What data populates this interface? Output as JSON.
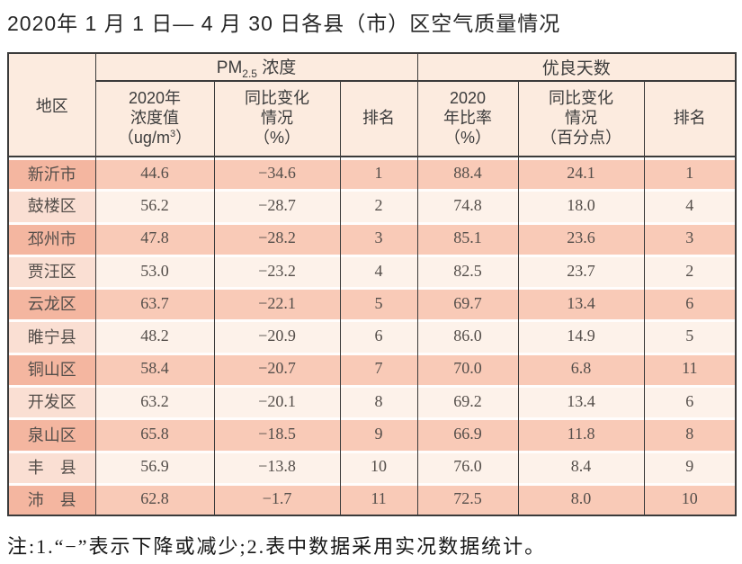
{
  "title": "2020年 1 月 1 日— 4 月 30 日各县（市）区空气质量情况",
  "note": "注:1.“−”表示下降或减少;2.表中数据采用实况数据统计。",
  "colors": {
    "row_odd_region": "#f4b6a0",
    "row_odd": "#f9cab7",
    "row_even_region": "#fadfd3",
    "row_even": "#fdf2ea",
    "header_bg": "#fcebdf",
    "border": "#3b3b3b"
  },
  "chart_data": {
    "type": "table",
    "title": "2020年1月1日—4月30日各县（市）区空气质量情况",
    "columns": [
      "地区",
      "PM2.5浓度 2020年浓度值（ug/m3）",
      "PM2.5浓度 同比变化情况（%）",
      "PM2.5浓度 排名",
      "优良天数 2020年比率（%）",
      "优良天数 同比变化情况（百分点）",
      "优良天数 排名"
    ],
    "rows": [
      [
        "新沂市",
        44.6,
        -34.6,
        1,
        88.4,
        24.1,
        1
      ],
      [
        "鼓楼区",
        56.2,
        -28.7,
        2,
        74.8,
        18.0,
        4
      ],
      [
        "邳州市",
        47.8,
        -28.2,
        3,
        85.1,
        23.6,
        3
      ],
      [
        "贾汪区",
        53.0,
        -23.2,
        4,
        82.5,
        23.7,
        2
      ],
      [
        "云龙区",
        63.7,
        -22.1,
        5,
        69.7,
        13.4,
        6
      ],
      [
        "睢宁县",
        48.2,
        -20.9,
        6,
        86.0,
        14.9,
        5
      ],
      [
        "铜山区",
        58.4,
        -20.7,
        7,
        70.0,
        6.8,
        11
      ],
      [
        "开发区",
        63.2,
        -20.1,
        8,
        69.2,
        13.4,
        6
      ],
      [
        "泉山区",
        65.8,
        -18.5,
        9,
        66.9,
        11.8,
        8
      ],
      [
        "丰县",
        56.9,
        -13.8,
        10,
        76.0,
        8.4,
        9
      ],
      [
        "沛县",
        62.8,
        -1.7,
        11,
        72.5,
        8.0,
        10
      ]
    ]
  },
  "table": {
    "region_header": "地区",
    "group1": {
      "prefix": "PM",
      "sub": "2.5",
      "suffix": " 浓度"
    },
    "group2": "优良天数",
    "sub1": {
      "line1": "2020年\n浓度值",
      "paren_open": "（",
      "unit": "ug/m",
      "sup": "3",
      "paren_close": "）"
    },
    "sub2": "同比变化\n情况\n（%）",
    "sub3": "排名",
    "sub4": "2020\n年比率\n（%）",
    "sub5": "同比变化\n情况\n（百分点）",
    "sub6": "排名",
    "rows": [
      {
        "region": "新沂市",
        "pm_value": "44.6",
        "pm_change": "−34.6",
        "pm_rank": "1",
        "good_ratio": "88.4",
        "good_change": "24.1",
        "good_rank": "1"
      },
      {
        "region": "鼓楼区",
        "pm_value": "56.2",
        "pm_change": "−28.7",
        "pm_rank": "2",
        "good_ratio": "74.8",
        "good_change": "18.0",
        "good_rank": "4"
      },
      {
        "region": "邳州市",
        "pm_value": "47.8",
        "pm_change": "−28.2",
        "pm_rank": "3",
        "good_ratio": "85.1",
        "good_change": "23.6",
        "good_rank": "3"
      },
      {
        "region": "贾汪区",
        "pm_value": "53.0",
        "pm_change": "−23.2",
        "pm_rank": "4",
        "good_ratio": "82.5",
        "good_change": "23.7",
        "good_rank": "2"
      },
      {
        "region": "云龙区",
        "pm_value": "63.7",
        "pm_change": "−22.1",
        "pm_rank": "5",
        "good_ratio": "69.7",
        "good_change": "13.4",
        "good_rank": "6"
      },
      {
        "region": "睢宁县",
        "pm_value": "48.2",
        "pm_change": "−20.9",
        "pm_rank": "6",
        "good_ratio": "86.0",
        "good_change": "14.9",
        "good_rank": "5"
      },
      {
        "region": "铜山区",
        "pm_value": "58.4",
        "pm_change": "−20.7",
        "pm_rank": "7",
        "good_ratio": "70.0",
        "good_change": "6.8",
        "good_rank": "11"
      },
      {
        "region": "开发区",
        "pm_value": "63.2",
        "pm_change": "−20.1",
        "pm_rank": "8",
        "good_ratio": "69.2",
        "good_change": "13.4",
        "good_rank": "6"
      },
      {
        "region": "泉山区",
        "pm_value": "65.8",
        "pm_change": "−18.5",
        "pm_rank": "9",
        "good_ratio": "66.9",
        "good_change": "11.8",
        "good_rank": "8"
      },
      {
        "region": "丰　县",
        "pm_value": "56.9",
        "pm_change": "−13.8",
        "pm_rank": "10",
        "good_ratio": "76.0",
        "good_change": "8.4",
        "good_rank": "9"
      },
      {
        "region": "沛　县",
        "pm_value": "62.8",
        "pm_change": "−1.7",
        "pm_rank": "11",
        "good_ratio": "72.5",
        "good_change": "8.0",
        "good_rank": "10"
      }
    ]
  }
}
